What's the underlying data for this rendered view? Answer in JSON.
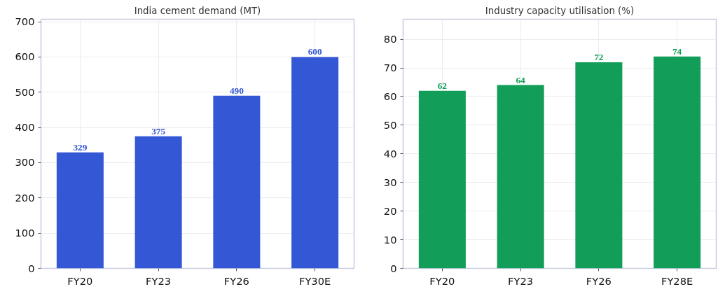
{
  "chart_data": [
    {
      "type": "bar",
      "title": "India cement demand (MT)",
      "categories": [
        "FY20",
        "FY23",
        "FY26",
        "FY30E"
      ],
      "values": [
        329,
        375,
        490,
        600
      ],
      "color": "#3457d5",
      "ylim": [
        0,
        707
      ],
      "yticks": [
        0,
        100,
        200,
        300,
        400,
        500,
        600,
        700
      ],
      "grid": true,
      "data_labels": true
    },
    {
      "type": "bar",
      "title": "Industry capacity utilisation (%)",
      "categories": [
        "FY20",
        "FY23",
        "FY26",
        "FY28E"
      ],
      "values": [
        62,
        64,
        72,
        74
      ],
      "color": "#129e58",
      "ylim": [
        0,
        87
      ],
      "yticks": [
        0,
        10,
        20,
        30,
        40,
        50,
        60,
        70,
        80
      ],
      "grid": true,
      "data_labels": true
    }
  ]
}
